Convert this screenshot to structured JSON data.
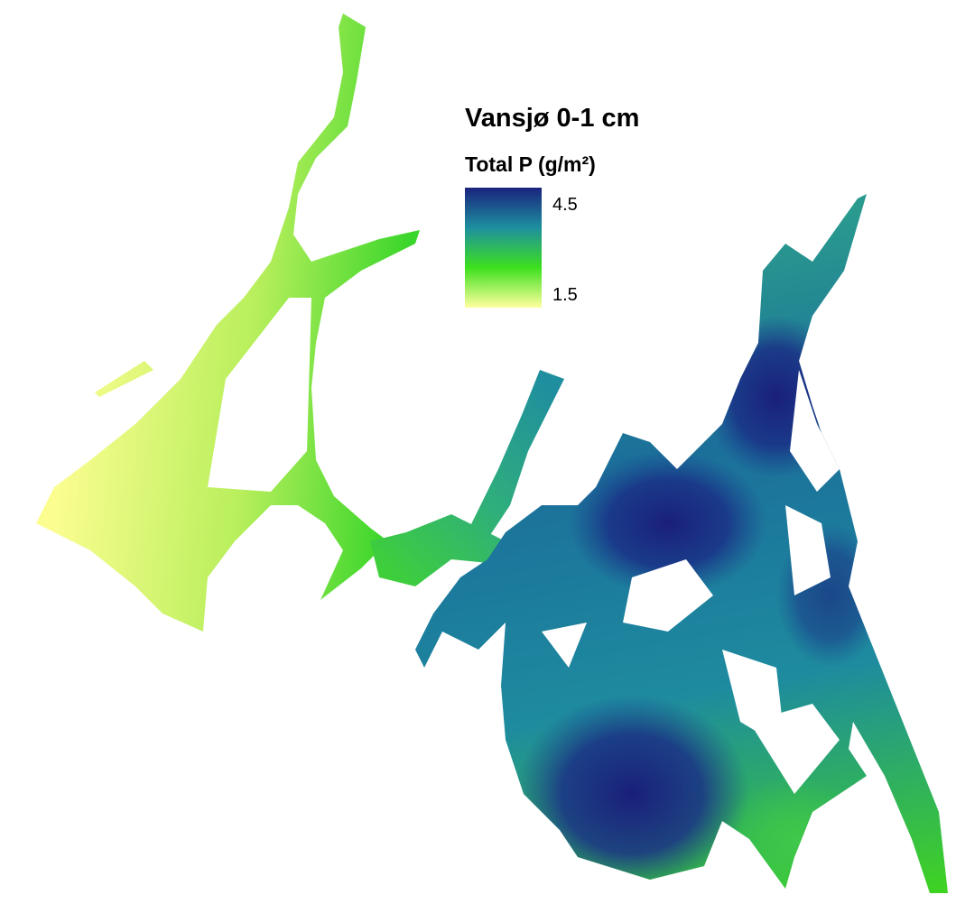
{
  "map": {
    "title": "Vansjø 0-1 cm",
    "legend": {
      "title": "Total P (g/m²)",
      "ticks": [
        4.5,
        1.5
      ],
      "limits": [
        1.1,
        5.1
      ],
      "colors": [
        "#ffff9e",
        "#3de01e",
        "#1e8f9f",
        "#1a237e"
      ]
    }
  }
}
